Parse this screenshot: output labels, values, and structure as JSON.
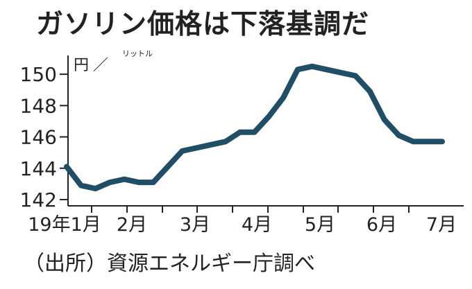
{
  "title": "ガソリン価格は下落基調だ",
  "source_note": "（出所）資源エネルギー庁調べ",
  "chart_data": {
    "type": "line",
    "ylabel": "円／リットル",
    "unit_main": "円",
    "unit_slash": "／",
    "unit_sub": "リットル",
    "x_labels": [
      "19年1月",
      "2月",
      "3月",
      "4月",
      "5月",
      "6月",
      "7月"
    ],
    "y_ticks": [
      142,
      144,
      146,
      148,
      150
    ],
    "ylim": [
      141.6,
      151.2
    ],
    "grid": false,
    "series": [
      {
        "color": "#1f4e66",
        "x": [
          0,
          0.5,
          1,
          1.5,
          2,
          2.5,
          3,
          3.5,
          4,
          4.5,
          5,
          5.5,
          6,
          6.5,
          7,
          7.5,
          8,
          8.5,
          9,
          9.5,
          10,
          10.5,
          11,
          11.5,
          12,
          12.5,
          13
        ],
        "values": [
          144.1,
          142.9,
          142.7,
          143.1,
          143.3,
          143.1,
          143.1,
          144.1,
          145.1,
          145.3,
          145.5,
          145.7,
          146.3,
          146.3,
          147.3,
          148.5,
          150.3,
          150.5,
          150.3,
          150.1,
          149.9,
          148.9,
          147.1,
          146.1,
          145.7,
          145.7,
          145.7
        ]
      }
    ]
  }
}
